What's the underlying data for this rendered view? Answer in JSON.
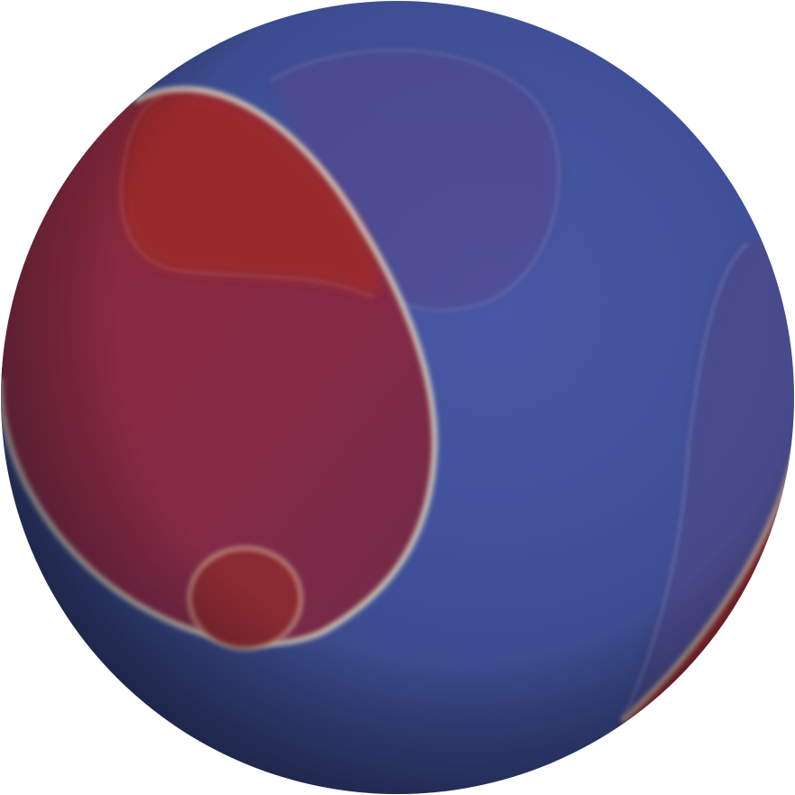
{
  "scene": {
    "subject": "sphere",
    "background_color": "#ffffff",
    "base_color": "#3e4f97",
    "shadow_color": "#2a3560",
    "highlight_color": "#4656a3",
    "phase_colors": {
      "red": "#8f2a3e",
      "deep_red": "#9a2a2e",
      "purple_tint": "#5a4a8a",
      "interface": "#e6e4c8"
    },
    "regions": [
      {
        "name": "large-red-domain",
        "color": "#8a2a42"
      },
      {
        "name": "upper-red-lobe",
        "color": "#9b2a2c"
      },
      {
        "name": "small-red-droplet",
        "color": "#8a2a32"
      },
      {
        "name": "purple-ghost-domain",
        "color": "#56478a"
      },
      {
        "name": "edge-red-band",
        "color": "#8a2228"
      }
    ]
  }
}
